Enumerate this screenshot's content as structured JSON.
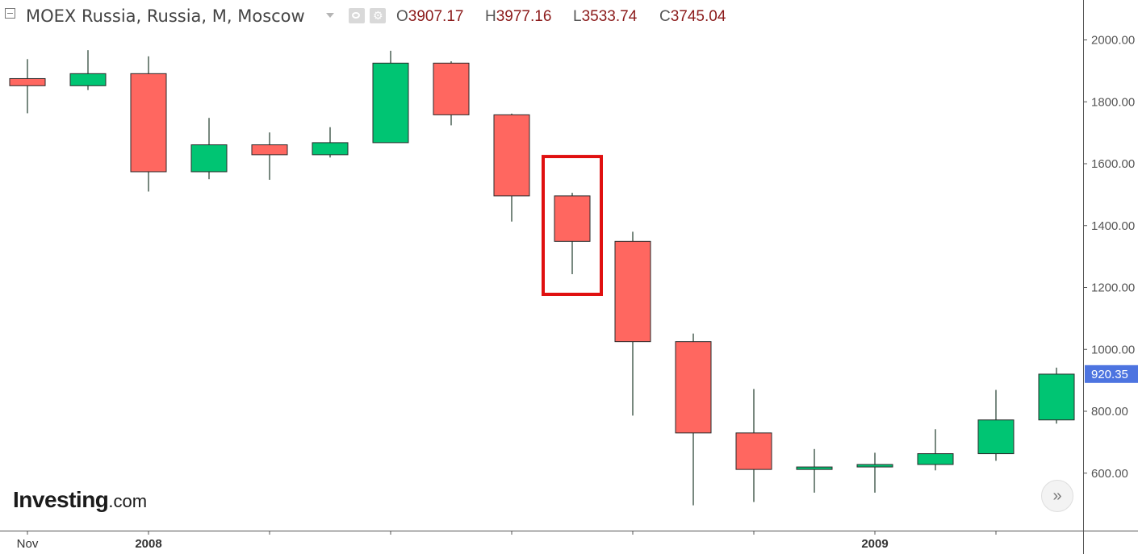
{
  "header": {
    "title": "MOEX Russia, Russia, M, Moscow",
    "ohlc": {
      "o_key": "O",
      "o_value": "3907.17",
      "h_key": "H",
      "h_value": "3977.16",
      "l_key": "L",
      "l_value": "3533.74",
      "c_key": "C",
      "c_value": "3745.04"
    }
  },
  "logo": {
    "main": "Investing",
    "sub": ".com"
  },
  "scroll_button": {
    "icon": "double-chevron-right-icon",
    "label": "»"
  },
  "chart_data": {
    "type": "candlestick",
    "interval": "monthly",
    "y_axis": {
      "ticks": [
        "2000.00",
        "1800.00",
        "1600.00",
        "1400.00",
        "1200.00",
        "1000.00",
        "800.00",
        "600.00"
      ],
      "range": [
        500,
        2000
      ]
    },
    "x_axis": {
      "labels": [
        {
          "index": 0,
          "text": "Nov",
          "bold": false
        },
        {
          "index": 2,
          "text": "2008",
          "bold": true
        },
        {
          "index": 14,
          "text": "2009",
          "bold": true
        }
      ]
    },
    "last_price": "920.35",
    "colors": {
      "up": "#00c573",
      "down": "#ff6760",
      "wick": "#1e3a2a",
      "highlight": "#e01010",
      "last_price_tag": "#4d74e0"
    },
    "highlighted_index": 9,
    "candles": [
      {
        "o": 1875,
        "h": 1938,
        "l": 1763,
        "c": 1852
      },
      {
        "o": 1852,
        "h": 1967,
        "l": 1838,
        "c": 1891
      },
      {
        "o": 1891,
        "h": 1947,
        "l": 1510,
        "c": 1574
      },
      {
        "o": 1574,
        "h": 1748,
        "l": 1550,
        "c": 1661
      },
      {
        "o": 1661,
        "h": 1701,
        "l": 1548,
        "c": 1629
      },
      {
        "o": 1629,
        "h": 1718,
        "l": 1620,
        "c": 1668
      },
      {
        "o": 1668,
        "h": 1965,
        "l": 1668,
        "c": 1925
      },
      {
        "o": 1925,
        "h": 1931,
        "l": 1724,
        "c": 1758
      },
      {
        "o": 1758,
        "h": 1762,
        "l": 1413,
        "c": 1496
      },
      {
        "o": 1496,
        "h": 1506,
        "l": 1243,
        "c": 1349
      },
      {
        "o": 1349,
        "h": 1380,
        "l": 786,
        "c": 1025
      },
      {
        "o": 1025,
        "h": 1051,
        "l": 496,
        "c": 730
      },
      {
        "o": 730,
        "h": 872,
        "l": 507,
        "c": 612
      },
      {
        "o": 612,
        "h": 678,
        "l": 537,
        "c": 620
      },
      {
        "o": 620,
        "h": 666,
        "l": 537,
        "c": 628
      },
      {
        "o": 628,
        "h": 742,
        "l": 609,
        "c": 663
      },
      {
        "o": 663,
        "h": 869,
        "l": 640,
        "c": 772
      },
      {
        "o": 772,
        "h": 941,
        "l": 760,
        "c": 920
      }
    ]
  }
}
